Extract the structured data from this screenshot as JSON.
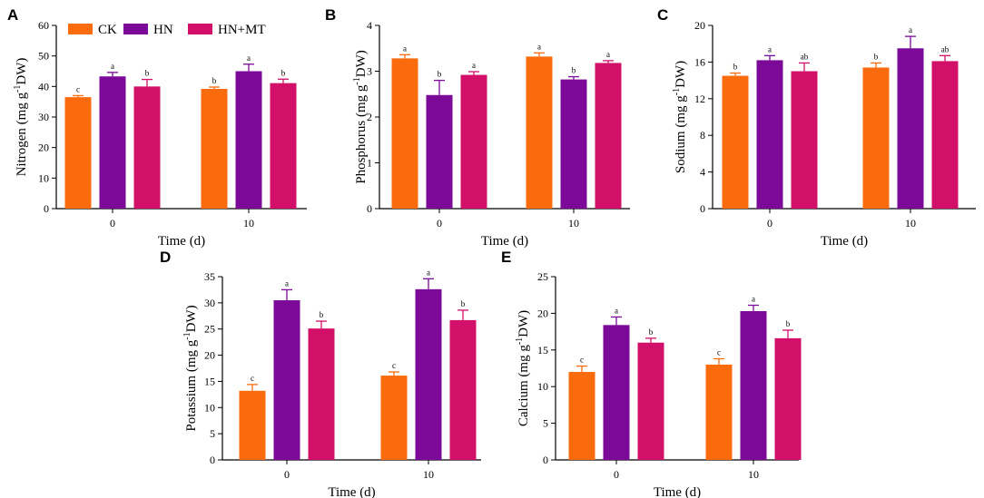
{
  "legend": {
    "series_names": [
      "CK",
      "HN",
      "HN+MT"
    ],
    "colors": [
      "#f96b0c",
      "#7b0a98",
      "#d2106a"
    ]
  },
  "chart_data": [
    {
      "type": "bar",
      "panel": "A",
      "title": "",
      "xlabel": "Time (d)",
      "ylabel": "Nitrogen (mg g-1DW)",
      "ylabel_parts": [
        "Nitrogen (mg g",
        "-1",
        "DW)"
      ],
      "ylim": [
        0,
        60
      ],
      "yticks": [
        0,
        10,
        20,
        30,
        40,
        50,
        60
      ],
      "categories": [
        "0",
        "10"
      ],
      "series": [
        {
          "name": "CK",
          "values": [
            36.5,
            39.2
          ],
          "errors": [
            0.5,
            0.6
          ],
          "letters": [
            "c",
            "b"
          ]
        },
        {
          "name": "HN",
          "values": [
            43.3,
            45.0
          ],
          "errors": [
            1.3,
            2.3
          ],
          "letters": [
            "a",
            "a"
          ]
        },
        {
          "name": "HN+MT",
          "values": [
            40.0,
            41.1
          ],
          "errors": [
            2.3,
            1.3
          ],
          "letters": [
            "b",
            "b"
          ]
        }
      ]
    },
    {
      "type": "bar",
      "panel": "B",
      "title": "",
      "xlabel": "Time (d)",
      "ylabel": "Phosphorus (mg g-1DW)",
      "ylabel_parts": [
        "Phosphorus (mg g",
        "-1",
        "DW)"
      ],
      "ylim": [
        0,
        4
      ],
      "yticks": [
        0,
        1,
        2,
        3,
        4
      ],
      "categories": [
        "0",
        "10"
      ],
      "series": [
        {
          "name": "CK",
          "values": [
            3.28,
            3.32
          ],
          "errors": [
            0.08,
            0.08
          ],
          "letters": [
            "a",
            "a"
          ]
        },
        {
          "name": "HN",
          "values": [
            2.48,
            2.82
          ],
          "errors": [
            0.32,
            0.06
          ],
          "letters": [
            "b",
            "b"
          ]
        },
        {
          "name": "HN+MT",
          "values": [
            2.92,
            3.18
          ],
          "errors": [
            0.07,
            0.05
          ],
          "letters": [
            "a",
            "a"
          ]
        }
      ]
    },
    {
      "type": "bar",
      "panel": "C",
      "title": "",
      "xlabel": "Time (d)",
      "ylabel": "Sodium (mg g-1DW)",
      "ylabel_parts": [
        "Sodium (mg g",
        "-1",
        "DW)"
      ],
      "ylim": [
        0,
        20
      ],
      "yticks": [
        0,
        4,
        8,
        12,
        16,
        20
      ],
      "categories": [
        "0",
        "10"
      ],
      "series": [
        {
          "name": "CK",
          "values": [
            14.5,
            15.4
          ],
          "errors": [
            0.3,
            0.5
          ],
          "letters": [
            "b",
            "b"
          ]
        },
        {
          "name": "HN",
          "values": [
            16.2,
            17.5
          ],
          "errors": [
            0.5,
            1.3
          ],
          "letters": [
            "a",
            "a"
          ]
        },
        {
          "name": "HN+MT",
          "values": [
            15.0,
            16.1
          ],
          "errors": [
            0.9,
            0.6
          ],
          "letters": [
            "ab",
            "ab"
          ]
        }
      ]
    },
    {
      "type": "bar",
      "panel": "D",
      "title": "",
      "xlabel": "Time (d)",
      "ylabel": "Potassium (mg g-1DW)",
      "ylabel_parts": [
        "Potassium (mg g",
        "-1",
        "DW)"
      ],
      "ylim": [
        0,
        35
      ],
      "yticks": [
        0,
        5,
        10,
        15,
        20,
        25,
        30,
        35
      ],
      "categories": [
        "0",
        "10"
      ],
      "series": [
        {
          "name": "CK",
          "values": [
            13.2,
            16.1
          ],
          "errors": [
            1.2,
            0.7
          ],
          "letters": [
            "c",
            "c"
          ]
        },
        {
          "name": "HN",
          "values": [
            30.5,
            32.6
          ],
          "errors": [
            2.0,
            2.0
          ],
          "letters": [
            "a",
            "a"
          ]
        },
        {
          "name": "HN+MT",
          "values": [
            25.1,
            26.7
          ],
          "errors": [
            1.4,
            1.9
          ],
          "letters": [
            "b",
            "b"
          ]
        }
      ]
    },
    {
      "type": "bar",
      "panel": "E",
      "title": "",
      "xlabel": "Time (d)",
      "ylabel": "Calcium (mg g-1DW)",
      "ylabel_parts": [
        "Calcium (mg g",
        "-1",
        "DW)"
      ],
      "ylim": [
        0,
        25
      ],
      "yticks": [
        0,
        5,
        10,
        15,
        20,
        25
      ],
      "categories": [
        "0",
        "10"
      ],
      "series": [
        {
          "name": "CK",
          "values": [
            12.0,
            13.0
          ],
          "errors": [
            0.8,
            0.8
          ],
          "letters": [
            "c",
            "c"
          ]
        },
        {
          "name": "HN",
          "values": [
            18.4,
            20.3
          ],
          "errors": [
            1.1,
            0.8
          ],
          "letters": [
            "a",
            "a"
          ]
        },
        {
          "name": "HN+MT",
          "values": [
            16.0,
            16.6
          ],
          "errors": [
            0.6,
            1.1
          ],
          "letters": [
            "b",
            "b"
          ]
        }
      ]
    }
  ]
}
